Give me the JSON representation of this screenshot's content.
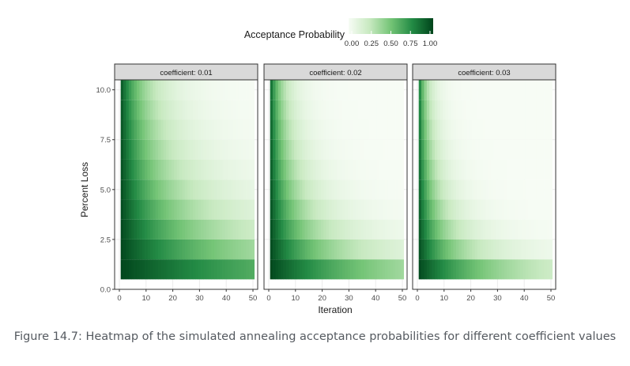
{
  "caption": "Figure 14.7: Heatmap of the simulated annealing acceptance probabilities for different coefficient values",
  "chart_data": {
    "type": "heatmap",
    "xlabel": "Iteration",
    "ylabel": "Percent Loss",
    "xlim": [
      0,
      50
    ],
    "ylim": [
      0,
      10.5
    ],
    "x_ticks": [
      0,
      10,
      20,
      30,
      40,
      50
    ],
    "y_ticks": [
      0.0,
      2.5,
      5.0,
      7.5,
      10.0
    ],
    "y_tick_labels": [
      "0.0",
      "2.5",
      "5.0",
      "7.5",
      "10.0"
    ],
    "x_cells": {
      "start": 1,
      "end": 50,
      "step": 1
    },
    "y_cells": {
      "start": 1,
      "end": 10,
      "step": 1
    },
    "value_formula": "exp(-coefficient * iteration * percent_loss)",
    "legend": {
      "title": "Acceptance Probability",
      "position": "top",
      "ticks": [
        0.0,
        0.25,
        0.5,
        0.75,
        1.0
      ],
      "tick_labels": [
        "0.00",
        "0.25",
        "0.50",
        "0.75",
        "1.00"
      ],
      "colors": [
        "#f7fcf5",
        "#c7e9c0",
        "#74c476",
        "#238b45",
        "#00441b"
      ]
    },
    "facets": [
      {
        "label": "coefficient: 0.01",
        "coefficient": 0.01
      },
      {
        "label": "coefficient: 0.02",
        "coefficient": 0.02
      },
      {
        "label": "coefficient: 0.03",
        "coefficient": 0.03
      }
    ],
    "grid": true
  }
}
